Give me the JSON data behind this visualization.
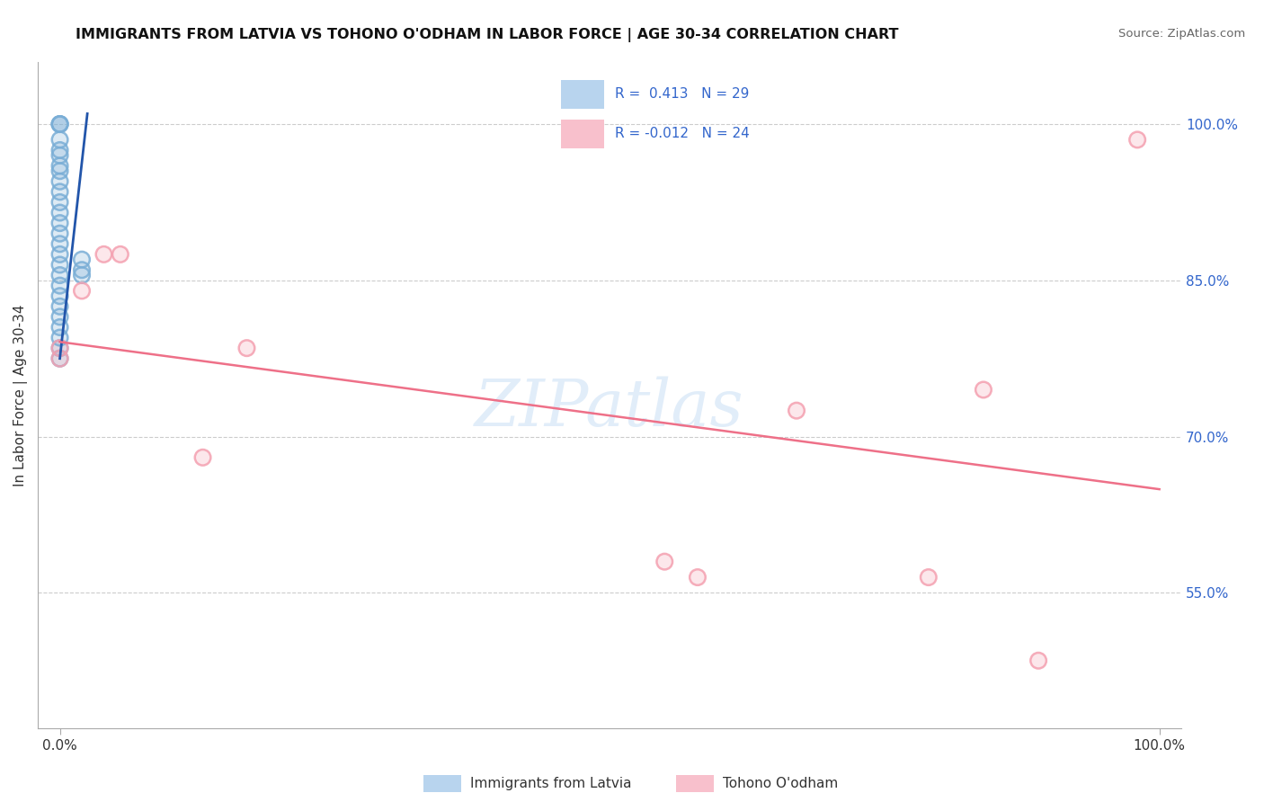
{
  "title": "IMMIGRANTS FROM LATVIA VS TOHONO O'ODHAM IN LABOR FORCE | AGE 30-34 CORRELATION CHART",
  "source": "Source: ZipAtlas.com",
  "ylabel": "In Labor Force | Age 30-34",
  "ytick_values": [
    0.55,
    0.7,
    0.85,
    1.0
  ],
  "xlim": [
    -0.02,
    1.02
  ],
  "ylim": [
    0.42,
    1.06
  ],
  "blue_color": "#7aaed6",
  "pink_color": "#f4a0b0",
  "blue_line_color": "#2255aa",
  "pink_line_color": "#ee7088",
  "legend_box_blue": "#b8d4ee",
  "legend_box_pink": "#f8c0cc",
  "blue_scatter_x": [
    0.0,
    0.0,
    0.0,
    0.0,
    0.0,
    0.0,
    0.0,
    0.0,
    0.0,
    0.0,
    0.0,
    0.0,
    0.0,
    0.0,
    0.0,
    0.0,
    0.0,
    0.0,
    0.0,
    0.0,
    0.0,
    0.0,
    0.0,
    0.0,
    0.0,
    0.0,
    0.02,
    0.02,
    0.02
  ],
  "blue_scatter_y": [
    1.0,
    1.0,
    1.0,
    0.985,
    0.975,
    0.97,
    0.96,
    0.955,
    0.945,
    0.935,
    0.925,
    0.915,
    0.905,
    0.895,
    0.885,
    0.875,
    0.865,
    0.855,
    0.845,
    0.835,
    0.825,
    0.815,
    0.805,
    0.795,
    0.785,
    0.775,
    0.87,
    0.86,
    0.855
  ],
  "pink_scatter_x": [
    0.0,
    0.0,
    0.02,
    0.04,
    0.055,
    0.13,
    0.17,
    0.55,
    0.58,
    0.67,
    0.79,
    0.84,
    0.89,
    0.98
  ],
  "pink_scatter_y": [
    0.785,
    0.775,
    0.84,
    0.875,
    0.875,
    0.68,
    0.785,
    0.58,
    0.565,
    0.725,
    0.565,
    0.745,
    0.485,
    0.985
  ],
  "watermark_text": "ZIPatlas",
  "legend_text_color": "#3366cc",
  "title_color": "#111111",
  "source_color": "#666666",
  "grid_color": "#cccccc",
  "axis_color": "#aaaaaa",
  "right_tick_color": "#3366cc"
}
